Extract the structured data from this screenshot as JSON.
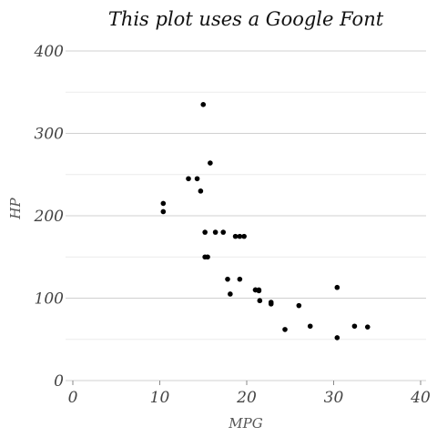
{
  "chart_data": {
    "type": "scatter",
    "title": "This plot uses a Google Font",
    "xlabel": "MPG",
    "ylabel": "HP",
    "xlim": [
      0,
      40
    ],
    "ylim": [
      0,
      400
    ],
    "x_ticks": [
      0,
      10,
      20,
      30,
      40
    ],
    "y_ticks": [
      0,
      100,
      200,
      300,
      400
    ],
    "x_tick_labels": [
      "0",
      "10",
      "20",
      "30",
      "40"
    ],
    "y_tick_labels": [
      "0",
      "100",
      "200",
      "300",
      "400"
    ],
    "grid": "horizontal",
    "points": [
      {
        "x": 21.0,
        "y": 110
      },
      {
        "x": 21.0,
        "y": 110
      },
      {
        "x": 22.8,
        "y": 93
      },
      {
        "x": 21.4,
        "y": 110
      },
      {
        "x": 18.7,
        "y": 175
      },
      {
        "x": 18.1,
        "y": 105
      },
      {
        "x": 14.3,
        "y": 245
      },
      {
        "x": 24.4,
        "y": 62
      },
      {
        "x": 22.8,
        "y": 95
      },
      {
        "x": 19.2,
        "y": 123
      },
      {
        "x": 17.8,
        "y": 123
      },
      {
        "x": 16.4,
        "y": 180
      },
      {
        "x": 17.3,
        "y": 180
      },
      {
        "x": 15.2,
        "y": 180
      },
      {
        "x": 10.4,
        "y": 205
      },
      {
        "x": 10.4,
        "y": 215
      },
      {
        "x": 14.7,
        "y": 230
      },
      {
        "x": 32.4,
        "y": 66
      },
      {
        "x": 30.4,
        "y": 52
      },
      {
        "x": 33.9,
        "y": 65
      },
      {
        "x": 21.5,
        "y": 97
      },
      {
        "x": 15.5,
        "y": 150
      },
      {
        "x": 15.2,
        "y": 150
      },
      {
        "x": 13.3,
        "y": 245
      },
      {
        "x": 19.2,
        "y": 175
      },
      {
        "x": 27.3,
        "y": 66
      },
      {
        "x": 26.0,
        "y": 91
      },
      {
        "x": 30.4,
        "y": 113
      },
      {
        "x": 15.8,
        "y": 264
      },
      {
        "x": 19.7,
        "y": 175
      },
      {
        "x": 15.0,
        "y": 335
      },
      {
        "x": 21.4,
        "y": 109
      }
    ]
  }
}
